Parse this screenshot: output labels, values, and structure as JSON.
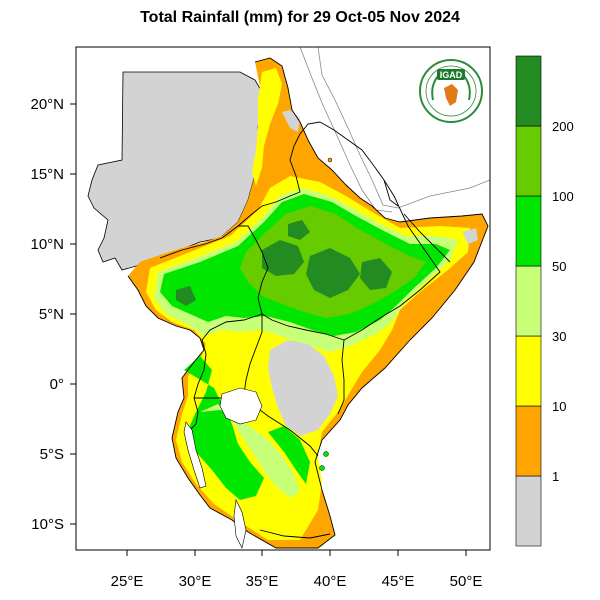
{
  "title": "Total Rainfall (mm) for 29 Oct-05 Nov 2024",
  "logo": {
    "text": "IGAD",
    "colors": {
      "ring": "#2e8b3a",
      "text_bg": "#1b7a2e"
    }
  },
  "map": {
    "lon_ticks": [
      "25°E",
      "30°E",
      "35°E",
      "40°E",
      "45°E",
      "50°E"
    ],
    "lat_ticks": [
      "20°N",
      "15°N",
      "10°N",
      "5°N",
      "0°",
      "5°S",
      "10°S"
    ]
  },
  "legend": {
    "classes": [
      {
        "color": "#d3d3d3"
      },
      {
        "color": "#ffa500"
      },
      {
        "color": "#ffff00"
      },
      {
        "color": "#c8ff78"
      },
      {
        "color": "#00e600"
      },
      {
        "color": "#66cc00"
      },
      {
        "color": "#228b22"
      }
    ],
    "labels": [
      "1",
      "10",
      "30",
      "50",
      "100",
      "200"
    ]
  },
  "colors": {
    "outside": "#d3d3d3",
    "r_1_10": "#ffa500",
    "r_10_30": "#ffff00",
    "r_30_50": "#c8ff78",
    "r_50_100": "#00e600",
    "r_100_200": "#66cc00",
    "r_200_plus": "#228b22",
    "border": "#000000",
    "coast": "#808080"
  }
}
